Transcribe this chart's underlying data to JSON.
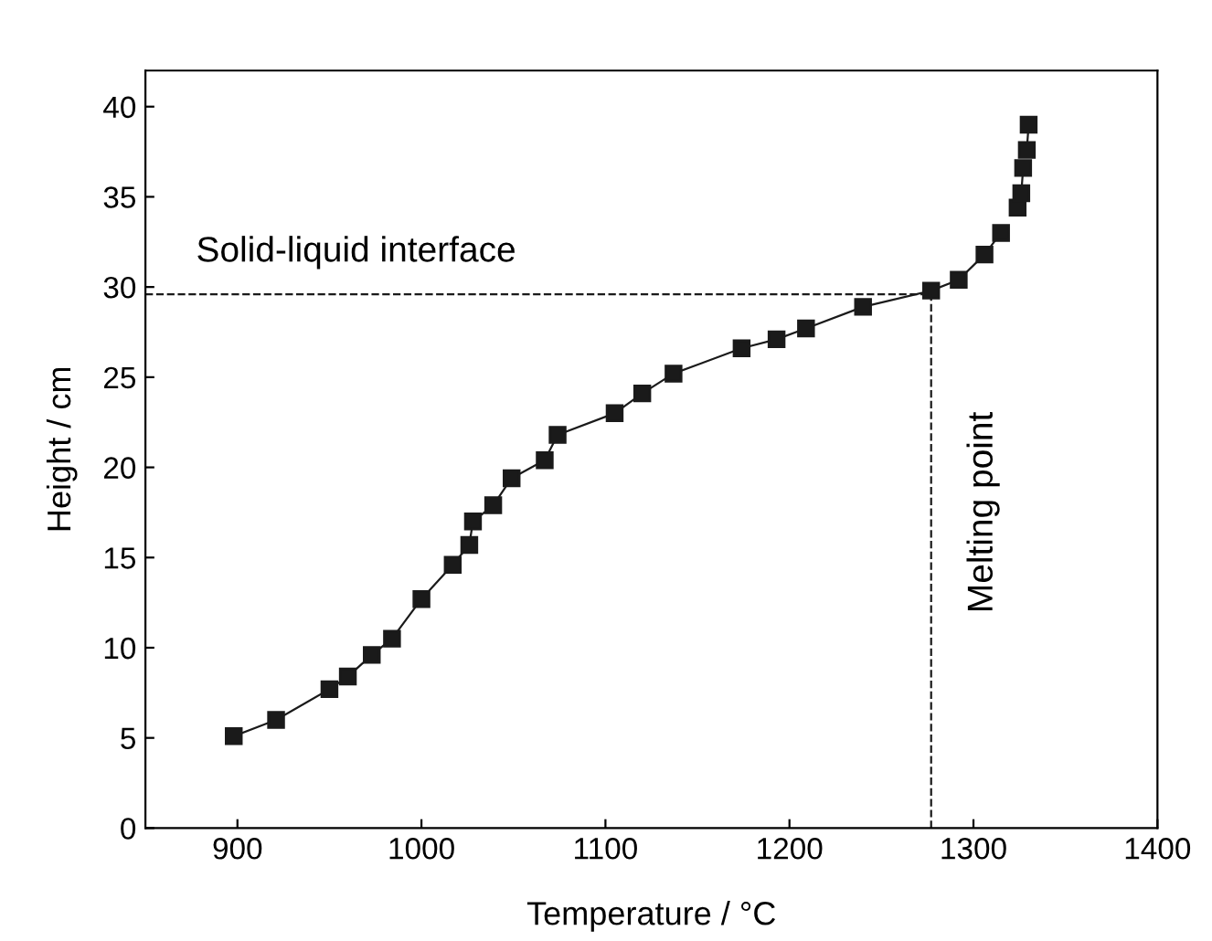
{
  "chart_data": {
    "type": "line",
    "xlabel": "Temperature / °C",
    "ylabel": "Height / cm",
    "x": [
      898,
      921,
      950,
      960,
      973,
      984,
      1000,
      1017,
      1026,
      1028,
      1039,
      1049,
      1067,
      1074,
      1105,
      1120,
      1137,
      1174,
      1193,
      1209,
      1240,
      1277,
      1292,
      1306,
      1315,
      1321,
      1324,
      1326,
      1327,
      1328,
      1329,
      1330
    ],
    "series": [
      {
        "color": "#1a1a1a",
        "values": [
          5.1,
          6.0,
          7.7,
          8.4,
          9.6,
          10.5,
          12.7,
          14.6,
          15.7,
          17.0,
          17.9,
          19.4,
          20.4,
          21.8,
          23.0,
          24.1,
          25.2,
          26.6,
          27.1,
          27.7,
          28.9,
          29.8,
          30.4,
          31.8,
          33.0,
          null,
          34.4,
          35.2,
          36.6,
          null,
          37.6,
          39.0
        ]
      }
    ],
    "marker": "square",
    "line_style": "solid",
    "xlim": [
      850,
      1400
    ],
    "xticks": [
      900,
      1000,
      1100,
      1200,
      1300,
      1400
    ],
    "ylim": [
      0,
      42
    ],
    "yticks": [
      0,
      5,
      10,
      15,
      20,
      25,
      30,
      35,
      40
    ],
    "ref_lines": [
      {
        "axis": "y",
        "value": 29.6,
        "label": "Solid-liquid interface",
        "color": "#1a1a1a",
        "line_style": "dashed"
      },
      {
        "axis": "x",
        "value": 1277,
        "label": "Melting point",
        "color": "#1a1a1a",
        "line_style": "dashed"
      }
    ],
    "grid": false,
    "legend": false
  }
}
